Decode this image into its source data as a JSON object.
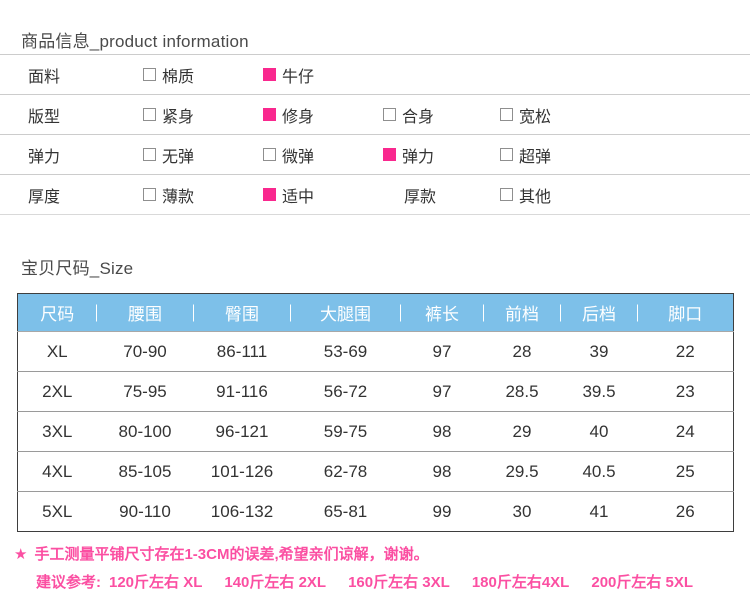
{
  "product_info": {
    "title": "商品信息_product information",
    "rows": [
      {
        "label": "面料",
        "options": [
          {
            "text": "棉质",
            "checked": false,
            "checkbox": true
          },
          {
            "text": "牛仔",
            "checked": true,
            "checkbox": true
          }
        ]
      },
      {
        "label": "版型",
        "options": [
          {
            "text": "紧身",
            "checked": false,
            "checkbox": true
          },
          {
            "text": "修身",
            "checked": true,
            "checkbox": true
          },
          {
            "text": "合身",
            "checked": false,
            "checkbox": true
          },
          {
            "text": "宽松",
            "checked": false,
            "checkbox": true
          }
        ]
      },
      {
        "label": "弹力",
        "options": [
          {
            "text": "无弹",
            "checked": false,
            "checkbox": true
          },
          {
            "text": "微弹",
            "checked": false,
            "checkbox": true
          },
          {
            "text": "弹力",
            "checked": true,
            "checkbox": true
          },
          {
            "text": "超弹",
            "checked": false,
            "checkbox": true
          }
        ]
      },
      {
        "label": "厚度",
        "options": [
          {
            "text": "薄款",
            "checked": false,
            "checkbox": true
          },
          {
            "text": "适中",
            "checked": true,
            "checkbox": true
          },
          {
            "text": "厚款",
            "checked": false,
            "checkbox": false
          },
          {
            "text": "其他",
            "checked": false,
            "checkbox": true
          }
        ]
      }
    ]
  },
  "size_section": {
    "title": "宝贝尺码_Size",
    "table": {
      "headers": [
        "尺码",
        "腰围",
        "臀围",
        "大腿围",
        "裤长",
        "前档",
        "后档",
        "脚口"
      ],
      "rows": [
        [
          "XL",
          "70-90",
          "86-111",
          "53-69",
          "97",
          "28",
          "39",
          "22"
        ],
        [
          "2XL",
          "75-95",
          "91-116",
          "56-72",
          "97",
          "28.5",
          "39.5",
          "23"
        ],
        [
          "3XL",
          "80-100",
          "96-121",
          "59-75",
          "98",
          "29",
          "40",
          "24"
        ],
        [
          "4XL",
          "85-105",
          "101-126",
          "62-78",
          "98",
          "29.5",
          "40.5",
          "25"
        ],
        [
          "5XL",
          "90-110",
          "106-132",
          "65-81",
          "99",
          "30",
          "41",
          "26"
        ]
      ]
    }
  },
  "notes": {
    "star_icon": "★",
    "line1": "手工测量平铺尺寸存在1-3CM的误差,希望亲们谅解，谢谢。",
    "line2_prefix": "建议参考:",
    "line2_entries": [
      "120斤左右 XL",
      "140斤左右 2XL",
      "160斤左右 3XL",
      "180斤左右4XL",
      "200斤左右 5XL"
    ]
  },
  "colors": {
    "accent_pink": "#f9288e",
    "note_pink": "#fb4fa2",
    "header_blue": "#7dc0e9",
    "header_text": "#ffffff"
  }
}
